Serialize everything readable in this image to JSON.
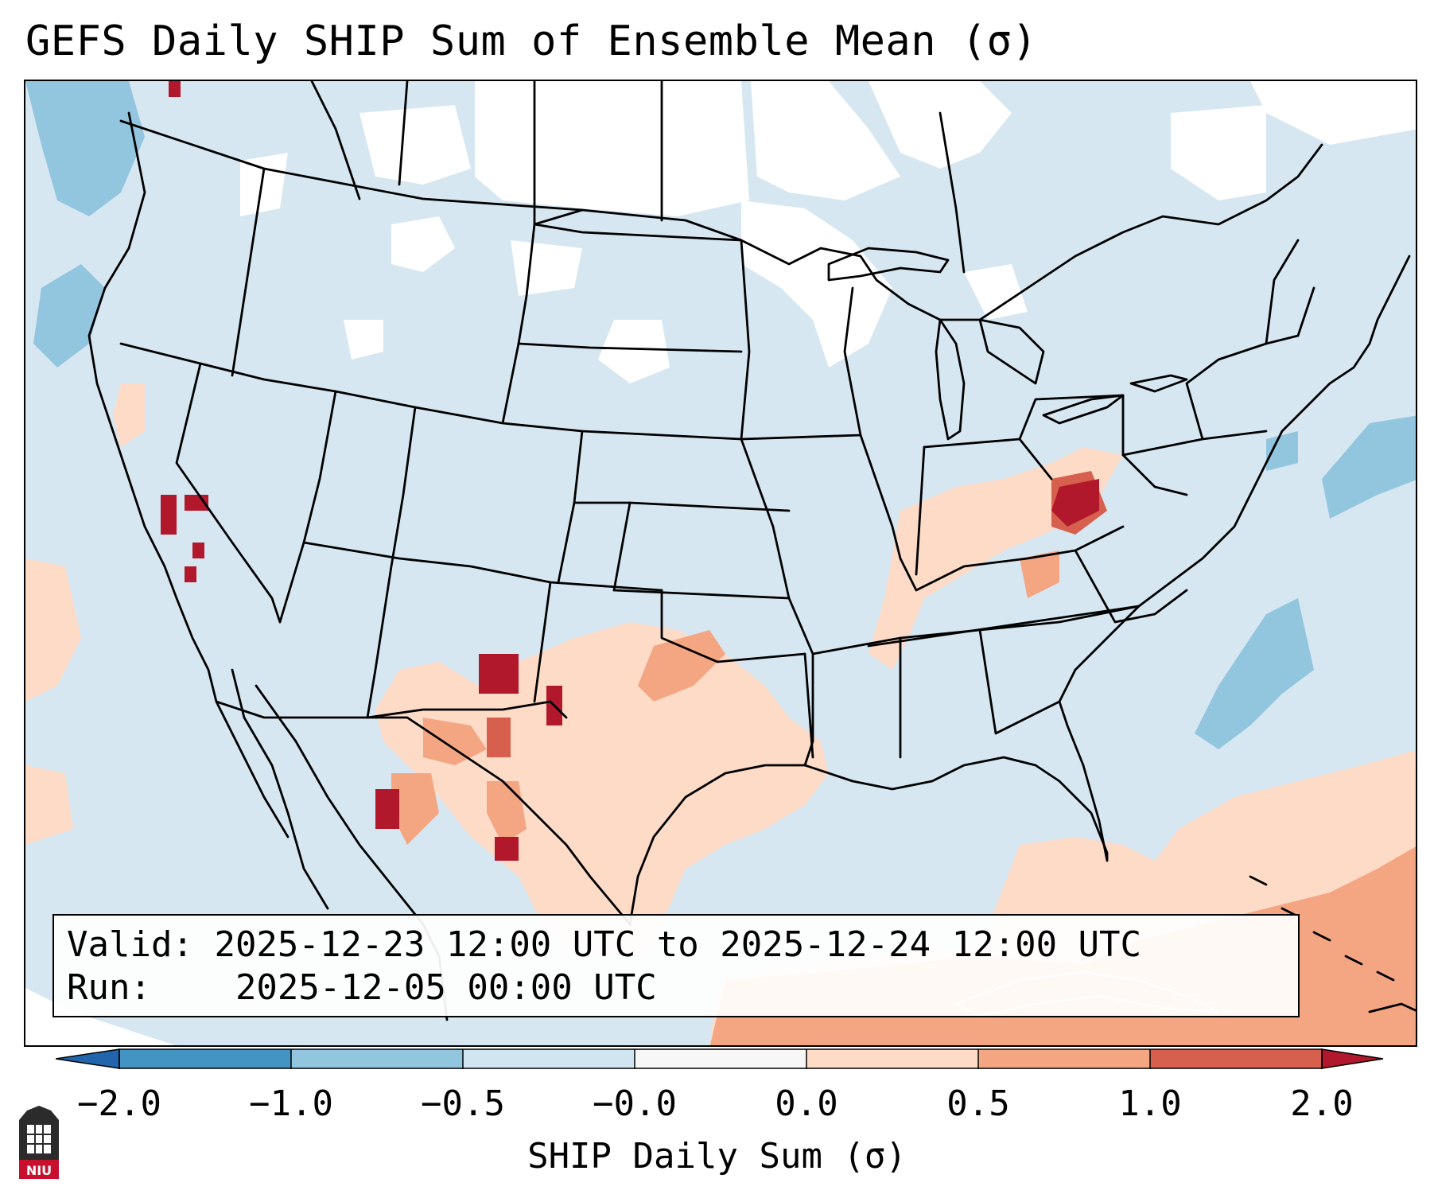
{
  "title": "GEFS Daily SHIP Sum of Ensemble Mean (σ)",
  "info": {
    "valid_label": "Valid:",
    "valid_value": "2025-12-23 12:00 UTC to 2025-12-24 12:00 UTC",
    "run_label": "Run:",
    "run_value": "2025-12-05 00:00 UTC"
  },
  "colorbar": {
    "label": "SHIP Daily Sum (σ)",
    "ticks": [
      "−2.0",
      "−1.0",
      "−0.5",
      "−0.0",
      "0.0",
      "0.5",
      "1.0",
      "2.0"
    ],
    "colors": {
      "below_min": "#2166ac",
      "bin_neg2_neg1": "#4393c3",
      "bin_neg1_neg05": "#92c5de",
      "bin_neg05_0": "#d1e5f0",
      "bin_0": "#f7f7f7",
      "bin_0_05": "#fddbc7",
      "bin_05_1": "#f4a582",
      "bin_1_2": "#d6604d",
      "above_max": "#b2182b"
    }
  },
  "map": {
    "region": "Contiguous United States, southern Canada, northern Mexico, Gulf of Mexico, Caribbean",
    "colors": {
      "background_bin": "#d1e5f0",
      "no_signal": "#ffffff",
      "low_positive": "#fddbc7",
      "mid_positive": "#f4a582",
      "high_positive": "#d6604d",
      "max_positive": "#b2182b",
      "low_negative": "#92c5de",
      "border": "#000000"
    }
  },
  "logo": {
    "text": "NIU",
    "color": "#c8102e"
  }
}
